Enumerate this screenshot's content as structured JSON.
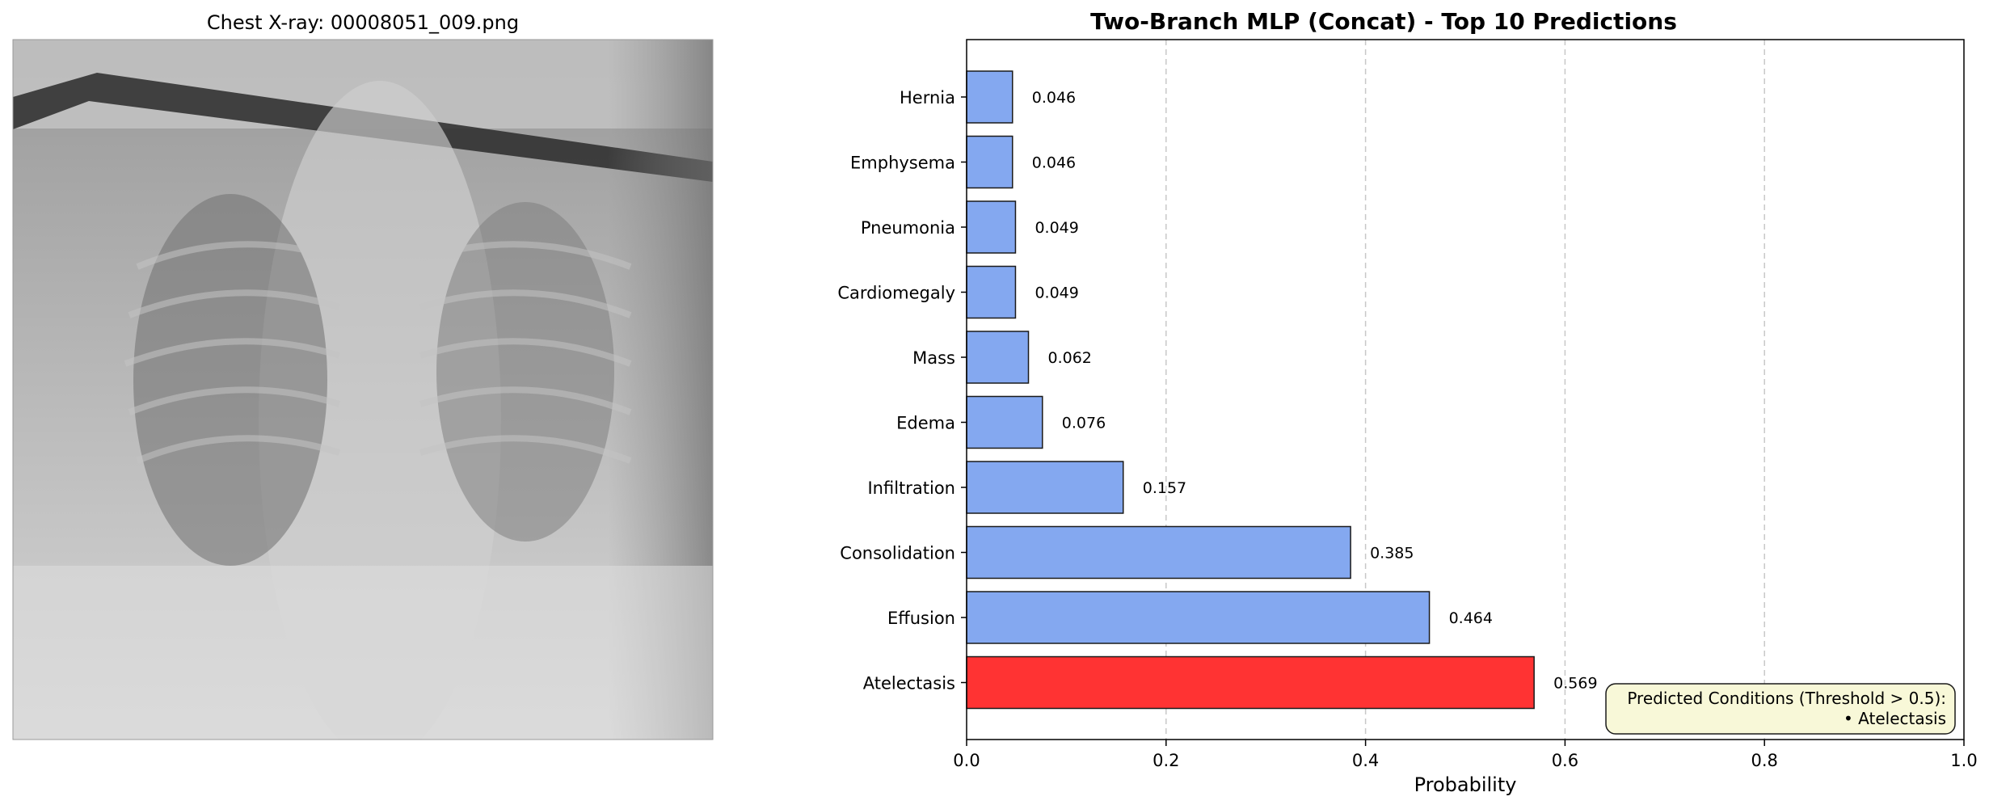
{
  "left_panel": {
    "title": "Chest X-ray: 00008051_009.png"
  },
  "chart_data": {
    "type": "bar",
    "orientation": "horizontal",
    "title": "Two-Branch MLP (Concat) - Top 10 Predictions",
    "xlabel": "Probability",
    "ylabel": "",
    "xlim": [
      0.0,
      1.0
    ],
    "xticks": [
      "0.0",
      "0.2",
      "0.4",
      "0.6",
      "0.8",
      "1.0"
    ],
    "grid": "x-dashed",
    "categories": [
      "Hernia",
      "Emphysema",
      "Pneumonia",
      "Cardiomegaly",
      "Mass",
      "Edema",
      "Infiltration",
      "Consolidation",
      "Effusion",
      "Atelectasis"
    ],
    "values": [
      0.046,
      0.046,
      0.049,
      0.049,
      0.062,
      0.076,
      0.157,
      0.385,
      0.464,
      0.569
    ],
    "value_labels": [
      "0.046",
      "0.046",
      "0.049",
      "0.049",
      "0.062",
      "0.076",
      "0.157",
      "0.385",
      "0.464",
      "0.569"
    ],
    "threshold": 0.5,
    "colors": {
      "below_threshold": "#84a8f0",
      "above_threshold": "#ff3333",
      "edge": "#1a1a1a",
      "grid": "#c8c8c8",
      "annotation_bg": "#f8f8d8"
    },
    "annotation": {
      "placement": "bottom-right",
      "lines": [
        "Predicted Conditions (Threshold > 0.5):",
        "• Atelectasis"
      ]
    }
  }
}
